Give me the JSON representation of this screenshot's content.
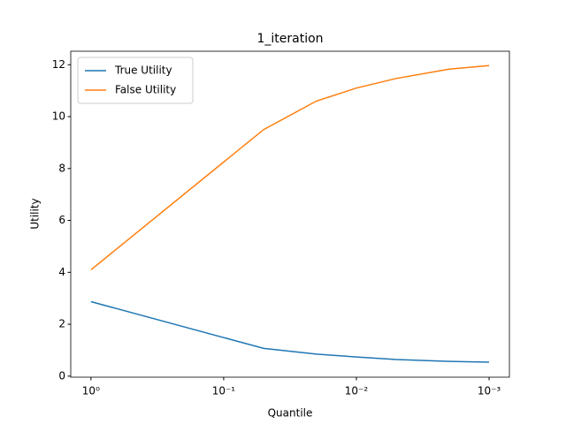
{
  "chart_data": {
    "type": "line",
    "title": "1_iteration",
    "xlabel": "Quantile",
    "ylabel": "Utility",
    "x": [
      1,
      0.05,
      0.02,
      0.01,
      0.005,
      0.002,
      0.001
    ],
    "series": [
      {
        "name": "True Utility",
        "color": "#1f77b4",
        "values": [
          2.87,
          1.07,
          0.85,
          0.74,
          0.64,
          0.57,
          0.54
        ]
      },
      {
        "name": "False Utility",
        "color": "#ff7f0e",
        "values": [
          4.1,
          9.5,
          10.6,
          11.1,
          11.47,
          11.83,
          11.97
        ]
      }
    ],
    "xscale": "log",
    "xlim": [
      1.42,
      0.000703
    ],
    "xticks": [
      {
        "value": 1,
        "label": "10⁰"
      },
      {
        "value": 0.1,
        "label": "10⁻¹"
      },
      {
        "value": 0.01,
        "label": "10⁻²"
      },
      {
        "value": 0.001,
        "label": "10⁻³"
      }
    ],
    "ylim": [
      -0.04,
      12.52
    ],
    "yticks": [
      0,
      2,
      4,
      6,
      8,
      10,
      12
    ],
    "legend": "upper left"
  }
}
